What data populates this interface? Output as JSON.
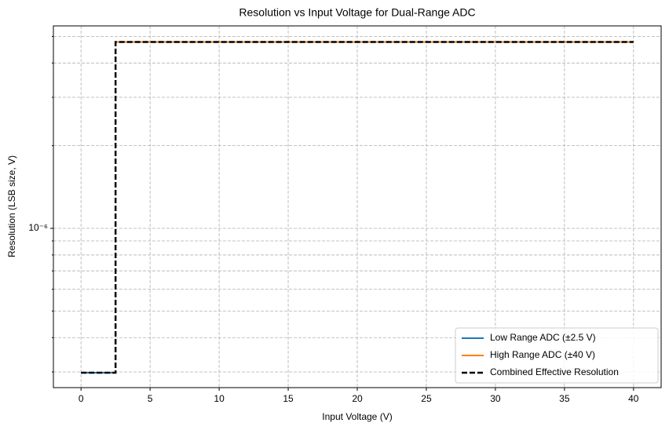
{
  "chart_data": {
    "type": "line",
    "title": "Resolution vs Input Voltage for Dual-Range ADC",
    "x_label": "Input Voltage (V)",
    "y_label": "Resolution (LSB size, V)",
    "xlim": [
      -2,
      42
    ],
    "xticks": [
      0,
      5,
      10,
      15,
      20,
      25,
      30,
      35,
      40
    ],
    "ylim": [
      2.63e-07,
      5.46e-06
    ],
    "y_scale": "log",
    "yticks": [
      {
        "value": 1e-06,
        "label": "10⁻⁶"
      }
    ],
    "y_minor_ticks": [
      3e-07,
      4e-07,
      5e-07,
      6e-07,
      7e-07,
      8e-07,
      9e-07,
      2e-06,
      3e-06,
      4e-06,
      5e-06
    ],
    "grid": true,
    "legend": "lower right",
    "series": [
      {
        "name": "Low Range ADC (±2.5 V)",
        "color": "#1f77b4",
        "linestyle": "solid",
        "x": [
          0,
          2.5
        ],
        "values": [
          2.98e-07,
          2.98e-07
        ]
      },
      {
        "name": "High Range ADC (±40 V)",
        "color": "#ff7f0e",
        "linestyle": "solid",
        "x": [
          2.5,
          40
        ],
        "values": [
          4.77e-06,
          4.77e-06
        ]
      },
      {
        "name": "Combined Effective Resolution",
        "color": "#000000",
        "linestyle": "dashed",
        "x": [
          0,
          2.5,
          2.5,
          40
        ],
        "values": [
          2.98e-07,
          2.98e-07,
          4.77e-06,
          4.77e-06
        ]
      }
    ]
  }
}
